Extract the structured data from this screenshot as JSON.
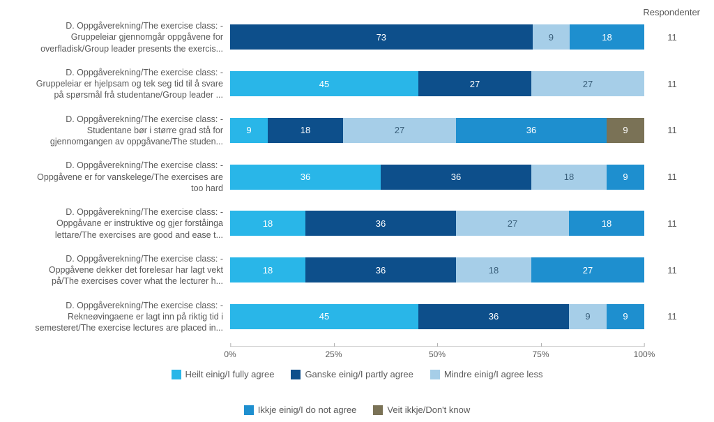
{
  "chart": {
    "type": "stacked-bar-horizontal",
    "respondents_header": "Respondenter",
    "axis_ticks": [
      "0%",
      "25%",
      "50%",
      "75%",
      "100%"
    ],
    "colors": {
      "fully_agree": "#29b6e8",
      "partly_agree": "#0d4f8b",
      "agree_less": "#a6cee8",
      "not_agree": "#1e8fcf",
      "dont_know": "#7a7256",
      "text": "#5a5a5a",
      "bg": "#ffffff",
      "grid": "#d0d0d0"
    },
    "categories": [
      {
        "key": "fully_agree",
        "label": "Heilt einig/I fully agree"
      },
      {
        "key": "partly_agree",
        "label": "Ganske einig/I partly agree"
      },
      {
        "key": "agree_less",
        "label": "Mindre einig/I agree less"
      },
      {
        "key": "not_agree",
        "label": "Ikkje einig/I do not agree"
      },
      {
        "key": "dont_know",
        "label": "Veit ikkje/Don't know"
      }
    ],
    "rows": [
      {
        "label": "D. Oppgåverekning/The exercise class: -\nGruppeleiar gjennomgår oppgåvene for\noverfladisk/Group leader presents the exercis...",
        "segments": {
          "fully_agree": 0,
          "partly_agree": 73,
          "agree_less": 9,
          "not_agree": 18,
          "dont_know": 0
        },
        "respondents": 11
      },
      {
        "label": "D. Oppgåverekning/The exercise class: -\nGruppeleiar er hjelpsam og tek seg tid til å svare\npå spørsmål frå studentane/Group leader ...",
        "segments": {
          "fully_agree": 45,
          "partly_agree": 27,
          "agree_less": 27,
          "not_agree": 0,
          "dont_know": 0
        },
        "respondents": 11
      },
      {
        "label": "D. Oppgåverekning/The exercise class: -\nStudentane bør i større grad stå for\ngjennomgangen av oppgåvane/The studen...",
        "segments": {
          "fully_agree": 9,
          "partly_agree": 18,
          "agree_less": 27,
          "not_agree": 36,
          "dont_know": 9
        },
        "respondents": 11
      },
      {
        "label": "D. Oppgåverekning/The exercise class: -\nOppgåvene er for vanskelege/The exercises are\ntoo hard",
        "segments": {
          "fully_agree": 36,
          "partly_agree": 36,
          "agree_less": 18,
          "not_agree": 9,
          "dont_know": 0
        },
        "respondents": 11
      },
      {
        "label": "D. Oppgåverekning/The exercise class: -\nOppgåvane er instruktive og gjer forståinga\nlettare/The exercises are good and ease t...",
        "segments": {
          "fully_agree": 18,
          "partly_agree": 36,
          "agree_less": 27,
          "not_agree": 18,
          "dont_know": 0
        },
        "respondents": 11
      },
      {
        "label": "D. Oppgåverekning/The exercise class: -\nOppgåvene dekker det forelesar har lagt vekt\npå/The exercises cover what the lecturer h...",
        "segments": {
          "fully_agree": 18,
          "partly_agree": 36,
          "agree_less": 18,
          "not_agree": 27,
          "dont_know": 0
        },
        "respondents": 11
      },
      {
        "label": "D. Oppgåverekning/The exercise class: -\nRekneøvingaene er lagt inn på riktig tid i\nsemesteret/The exercise lectures are placed in...",
        "segments": {
          "fully_agree": 45,
          "partly_agree": 36,
          "agree_less": 9,
          "not_agree": 9,
          "dont_know": 0
        },
        "respondents": 11
      }
    ]
  }
}
